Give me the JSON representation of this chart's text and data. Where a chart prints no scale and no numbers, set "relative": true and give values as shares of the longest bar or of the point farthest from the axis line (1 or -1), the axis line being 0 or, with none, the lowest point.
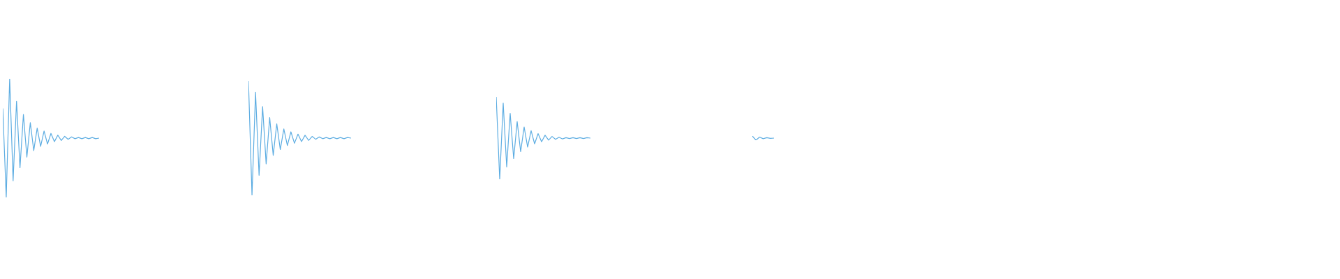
{
  "chart_data": [
    {
      "type": "line",
      "relative": true,
      "categories": [
        null,
        null,
        null,
        null,
        null,
        null,
        null,
        null,
        null,
        null,
        null,
        null,
        null,
        null,
        null,
        null,
        null,
        null,
        null,
        null,
        null,
        null,
        null,
        null,
        null,
        null,
        null,
        null,
        null
      ],
      "series": [
        {
          "color": "#5dade2",
          "values": [
            0.75,
            0,
            1,
            0.14,
            0.81,
            0.25,
            0.7,
            0.34,
            0.63,
            0.395,
            0.585,
            0.43,
            0.56,
            0.45,
            0.54,
            0.47,
            0.525,
            0.48,
            0.515,
            0.49,
            0.51,
            0.495,
            0.505,
            0.495,
            0.505,
            0.495,
            0.505,
            0.495,
            0.5
          ]
        }
      ]
    },
    {
      "type": "line",
      "relative": true,
      "categories": [
        null,
        null,
        null,
        null,
        null,
        null,
        null,
        null,
        null,
        null,
        null,
        null,
        null,
        null,
        null,
        null,
        null,
        null,
        null,
        null,
        null,
        null,
        null,
        null,
        null,
        null,
        null,
        null,
        null,
        null
      ],
      "series": [
        {
          "color": "#5dade2",
          "values": [
            1,
            0,
            0.9,
            0.175,
            0.775,
            0.275,
            0.68,
            0.35,
            0.625,
            0.4,
            0.58,
            0.435,
            0.555,
            0.455,
            0.535,
            0.47,
            0.525,
            0.48,
            0.515,
            0.49,
            0.51,
            0.495,
            0.505,
            0.495,
            0.505,
            0.495,
            0.505,
            0.495,
            0.505,
            0.5
          ]
        }
      ]
    },
    {
      "type": "line",
      "relative": true,
      "categories": [
        null,
        null,
        null,
        null,
        null,
        null,
        null,
        null,
        null,
        null,
        null,
        null,
        null,
        null,
        null,
        null,
        null,
        null,
        null,
        null,
        null,
        null,
        null,
        null,
        null,
        null,
        null,
        null
      ],
      "series": [
        {
          "color": "#5dade2",
          "values": [
            1,
            0,
            0.925,
            0.15,
            0.8,
            0.25,
            0.7,
            0.335,
            0.635,
            0.39,
            0.59,
            0.43,
            0.555,
            0.455,
            0.535,
            0.475,
            0.52,
            0.485,
            0.51,
            0.49,
            0.505,
            0.495,
            0.505,
            0.495,
            0.505,
            0.495,
            0.505,
            0.5
          ]
        }
      ]
    },
    {
      "type": "line",
      "relative": true,
      "categories": [
        null,
        null,
        null,
        null,
        null,
        null,
        null
      ],
      "series": [
        {
          "color": "#5dade2",
          "values": [
            1,
            0,
            0.75,
            0.35,
            0.6,
            0.45,
            0.5
          ]
        }
      ]
    }
  ]
}
